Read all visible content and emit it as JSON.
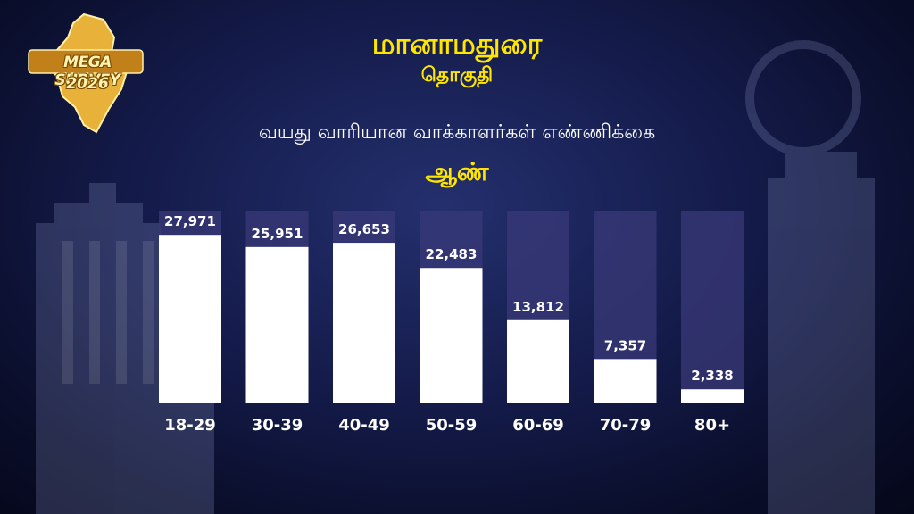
{
  "logo": {
    "text": "MEGA SURVEY",
    "year": "2026"
  },
  "header": {
    "title": "மானாமதுரை",
    "subtitle": "தொகுதி",
    "heading": "வயது வாரியான வாக்காளர்கள் எண்ணிக்கை"
  },
  "colors": {
    "title": "#ffe600",
    "bar_fill": "#ffffff",
    "bar_track": "#3a3a78",
    "value_text": "#ffffff",
    "category_text": "#ffffff"
  },
  "chart_data": {
    "type": "bar",
    "title": "வயது வாரியான வாக்காளர்கள் எண்ணிக்கை",
    "categories": [
      "18-29",
      "30-39",
      "40-49",
      "50-59",
      "60-69",
      "70-79",
      "80+"
    ],
    "series": [
      {
        "name": "ஆண்",
        "values": [
          27971,
          25951,
          26653,
          22483,
          13812,
          7357,
          2338
        ],
        "labels": [
          "27,971",
          "25,951",
          "26,653",
          "22,483",
          "13,812",
          "7,357",
          "2,338"
        ]
      }
    ],
    "ylim": [
      0,
      32000
    ],
    "legend": "top-center",
    "grid": false
  }
}
